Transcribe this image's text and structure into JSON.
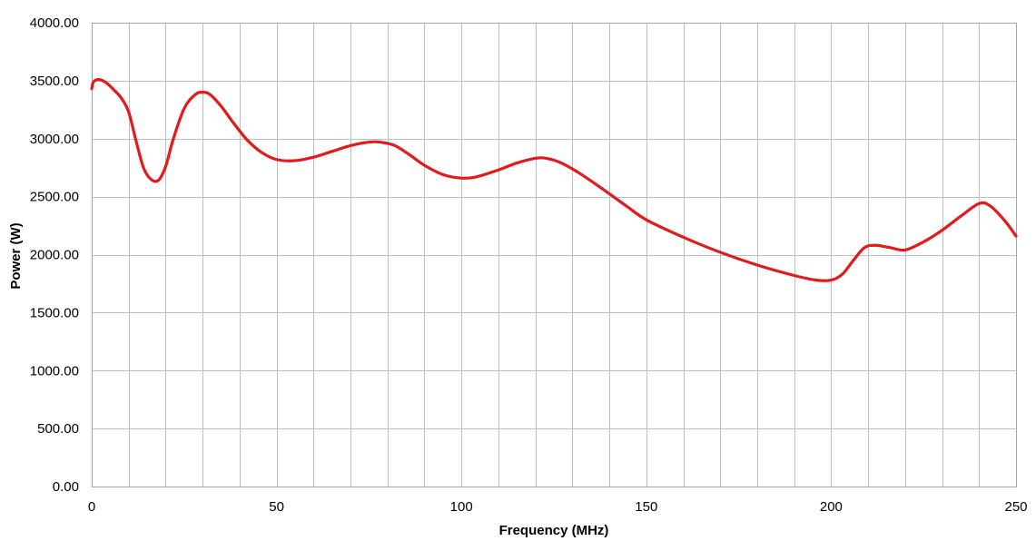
{
  "chart_data": {
    "type": "line",
    "xlabel": "Frequency (MHz)",
    "ylabel": "Power (W)",
    "xlim": [
      0,
      250
    ],
    "ylim": [
      0,
      4000
    ],
    "x_ticks": [
      0,
      50,
      100,
      150,
      200,
      250
    ],
    "x_tick_labels": [
      "0",
      "50",
      "100",
      "150",
      "200",
      "250"
    ],
    "y_ticks": [
      0,
      500,
      1000,
      1500,
      2000,
      2500,
      3000,
      3500,
      4000
    ],
    "y_tick_labels": [
      "0.00",
      "500.00",
      "1000.00",
      "1500.00",
      "2000.00",
      "2500.00",
      "3000.00",
      "3500.00",
      "4000.00"
    ],
    "x_minor_step": 10,
    "grid": true,
    "line_color": "#e31a1c",
    "series": [
      {
        "x": [
          0,
          0.5,
          2,
          4,
          6,
          8,
          10,
          12,
          14,
          16,
          18,
          20,
          22,
          25,
          28,
          30,
          32,
          35,
          38,
          42,
          46,
          50,
          55,
          60,
          65,
          70,
          75,
          78,
          82,
          86,
          90,
          95,
          100,
          104,
          110,
          115,
          120,
          123,
          127,
          132,
          138,
          145,
          150,
          160,
          170,
          180,
          190,
          196,
          200,
          203,
          206,
          209,
          212,
          216,
          220,
          225,
          230,
          235,
          240,
          243,
          247,
          250
        ],
        "y": [
          3430,
          3490,
          3510,
          3480,
          3420,
          3350,
          3230,
          2980,
          2750,
          2650,
          2640,
          2760,
          2990,
          3260,
          3380,
          3400,
          3380,
          3280,
          3150,
          2990,
          2880,
          2820,
          2810,
          2840,
          2890,
          2940,
          2970,
          2970,
          2940,
          2860,
          2770,
          2690,
          2660,
          2670,
          2730,
          2790,
          2830,
          2830,
          2790,
          2700,
          2570,
          2410,
          2300,
          2150,
          2020,
          1910,
          1820,
          1780,
          1780,
          1830,
          1950,
          2060,
          2080,
          2060,
          2040,
          2110,
          2210,
          2330,
          2440,
          2420,
          2290,
          2160
        ]
      }
    ]
  }
}
